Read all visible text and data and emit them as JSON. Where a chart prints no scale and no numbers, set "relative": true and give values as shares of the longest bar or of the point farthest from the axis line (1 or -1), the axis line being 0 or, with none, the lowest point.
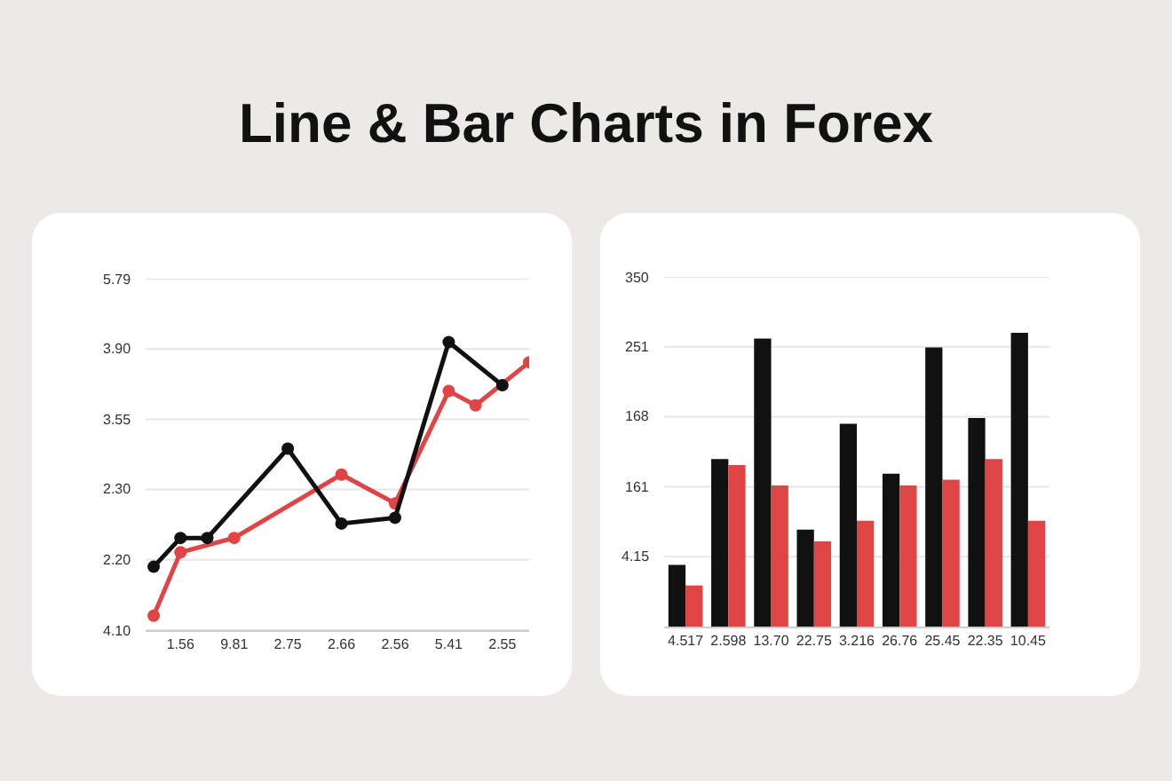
{
  "chart_data": [
    {
      "type": "line",
      "title": "Line & Bar Charts in Forex",
      "marker": "circle",
      "grid": "y",
      "relative": true,
      "categories": [
        null,
        "1.56",
        null,
        "9.81",
        null,
        "2.75",
        null,
        "2.66",
        null,
        "2.56",
        null,
        "5.41",
        null,
        "2.55",
        null
      ],
      "annotations": [
        "4.10",
        "2.20",
        "2.30",
        "3.55",
        "3.90",
        "5.79"
      ],
      "series": [
        {
          "color": "#e04444",
          "values": [
            0.05,
            0.27,
            null,
            0.32,
            null,
            null,
            null,
            0.54,
            null,
            0.44,
            null,
            0.83,
            0.78,
            null,
            0.93
          ]
        },
        {
          "color": "#111111",
          "values": [
            0.22,
            0.32,
            0.32,
            null,
            null,
            0.63,
            null,
            0.37,
            null,
            0.39,
            null,
            1,
            null,
            0.85,
            null
          ]
        }
      ]
    },
    {
      "type": "bar",
      "grid": "y",
      "relative": true,
      "categories": [
        "4.517",
        "2.598",
        "13.70",
        "22.75",
        "3.216",
        "26.76",
        "25.45",
        "22.35",
        "10.45"
      ],
      "annotations": [
        "4.15",
        "161",
        "168",
        "251",
        "350"
      ],
      "series": [
        {
          "color": "#111111",
          "values": [
            0.21,
            0.57,
            0.98,
            0.33,
            0.69,
            0.52,
            0.95,
            0.71,
            1
          ]
        },
        {
          "color": "#e04444",
          "values": [
            0.14,
            0.55,
            0.48,
            0.29,
            0.36,
            0.48,
            0.5,
            0.57,
            0.36
          ]
        }
      ]
    }
  ]
}
